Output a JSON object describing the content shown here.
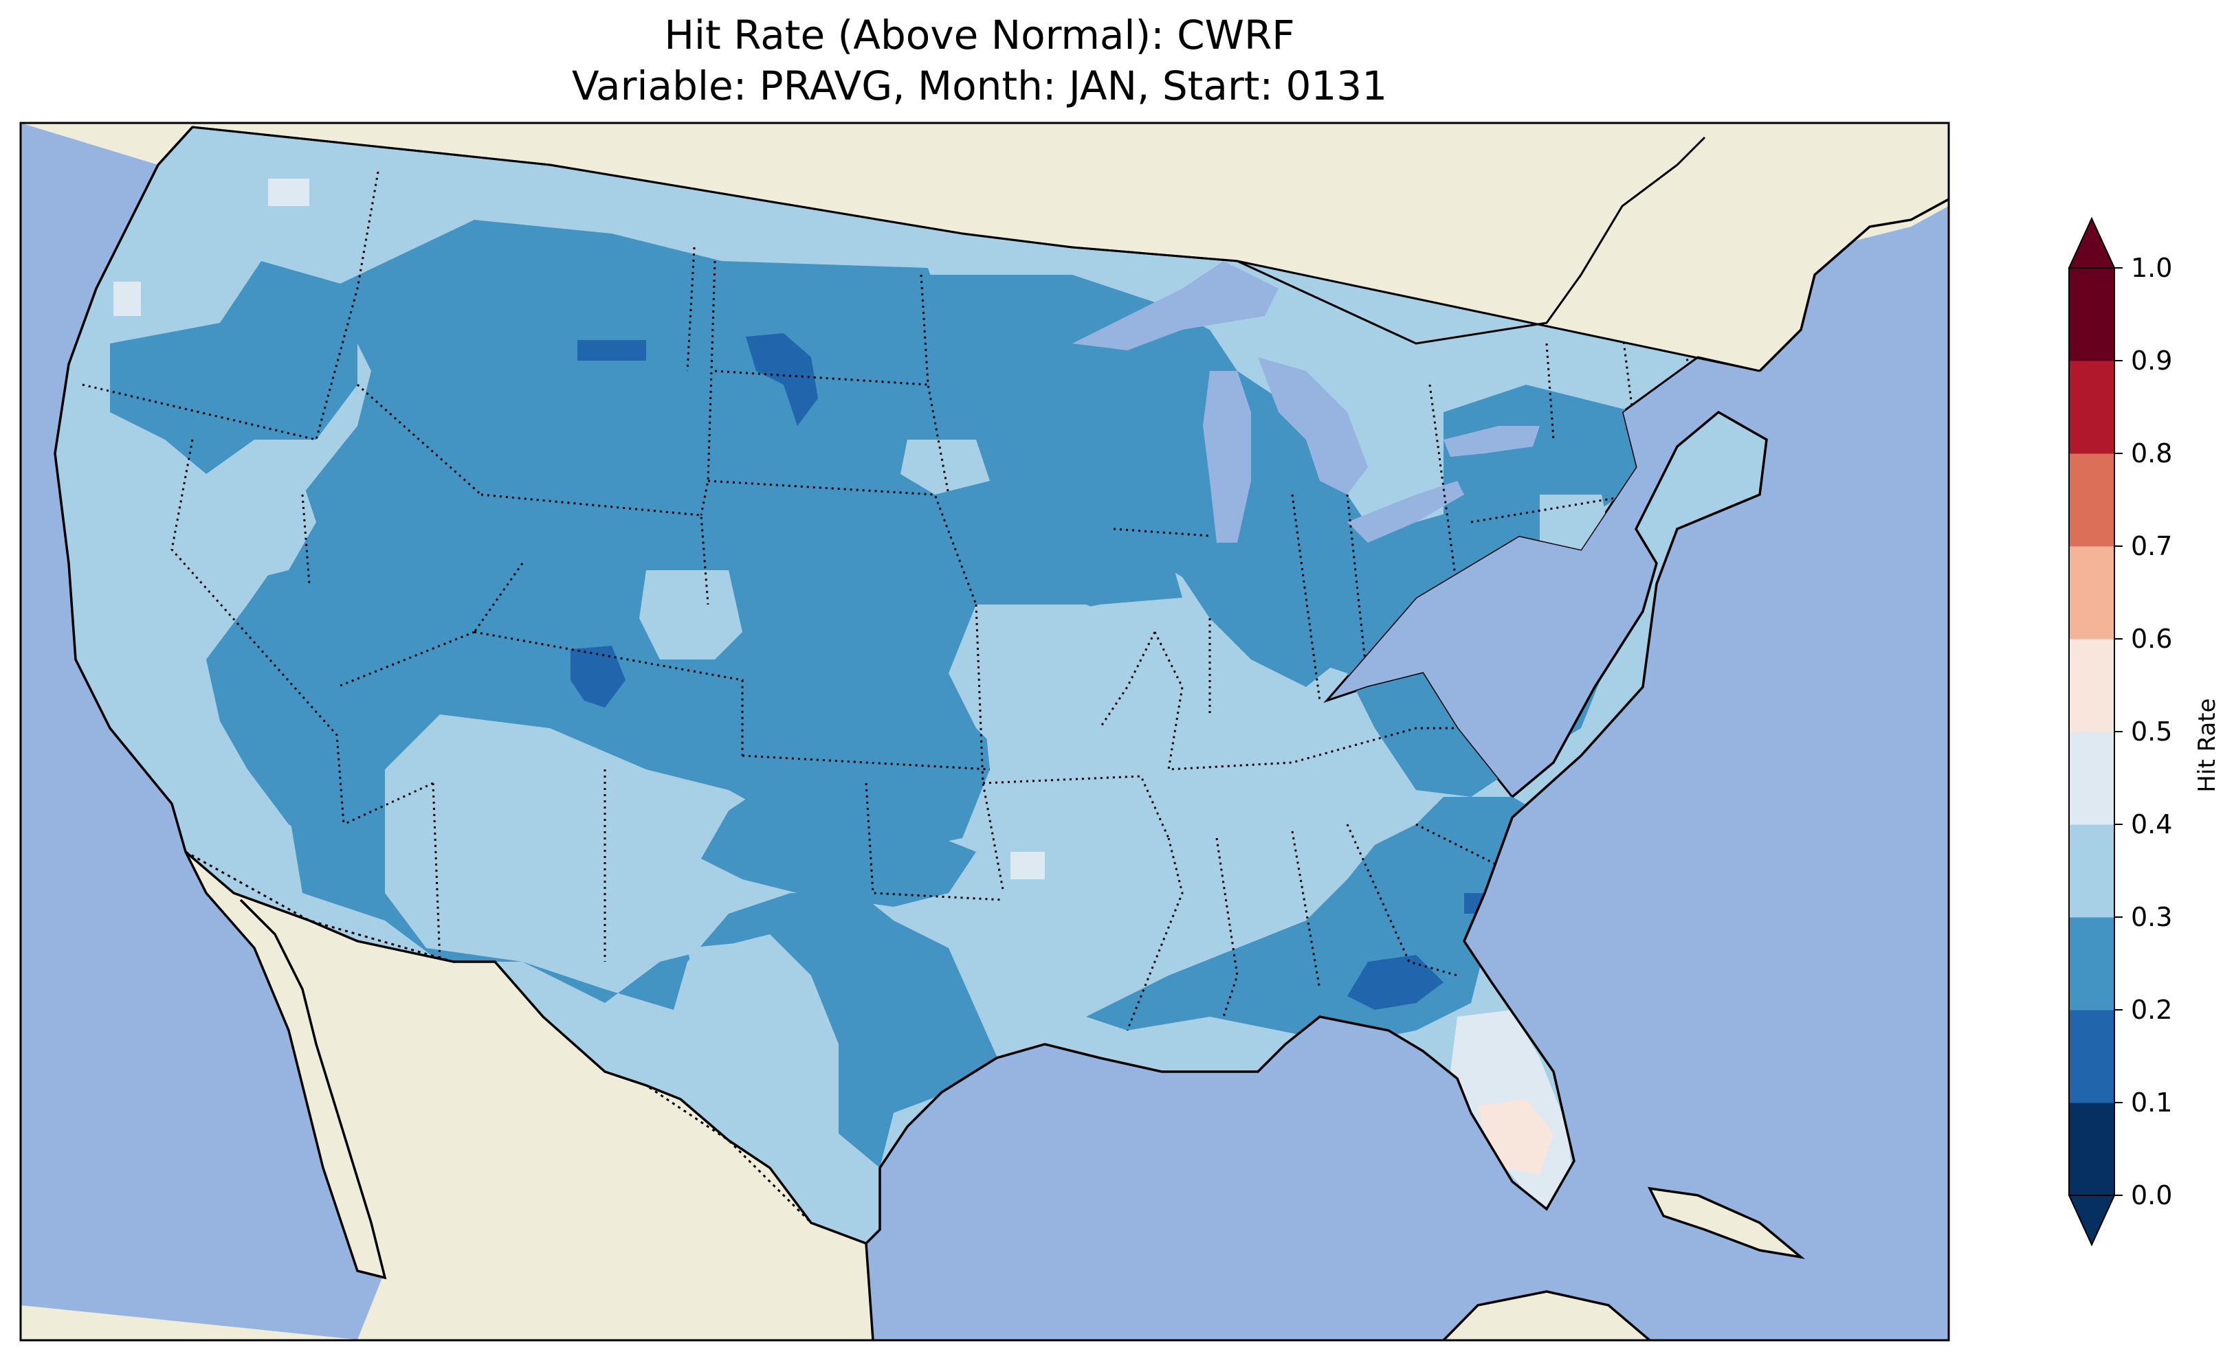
{
  "title": {
    "line1": "Hit Rate (Above Normal): CWRF",
    "line2": "Variable: PRAVG, Month: JAN, Start: 0131"
  },
  "colors": {
    "ocean": "#97b4e0",
    "land": "#efecda",
    "lake": "#97b4e0",
    "outline": "#000000"
  },
  "colorbar": {
    "label": "Hit Rate",
    "ticks": [
      "0.0",
      "0.1",
      "0.2",
      "0.3",
      "0.4",
      "0.5",
      "0.6",
      "0.7",
      "0.8",
      "0.9",
      "1.0"
    ],
    "bins": [
      {
        "range": "0.0-0.1",
        "color": "#053061"
      },
      {
        "range": "0.1-0.2",
        "color": "#2166ac"
      },
      {
        "range": "0.2-0.3",
        "color": "#4393c3"
      },
      {
        "range": "0.3-0.4",
        "color": "#a7cfe5"
      },
      {
        "range": "0.4-0.5",
        "color": "#dfe9f2"
      },
      {
        "range": "0.5-0.6",
        "color": "#f8e6dc"
      },
      {
        "range": "0.6-0.7",
        "color": "#f4b497"
      },
      {
        "range": "0.7-0.8",
        "color": "#dc6f58"
      },
      {
        "range": "0.8-0.9",
        "color": "#b2182b"
      },
      {
        "range": "0.9-1.0",
        "color": "#67001f"
      }
    ],
    "extend": "both"
  }
}
